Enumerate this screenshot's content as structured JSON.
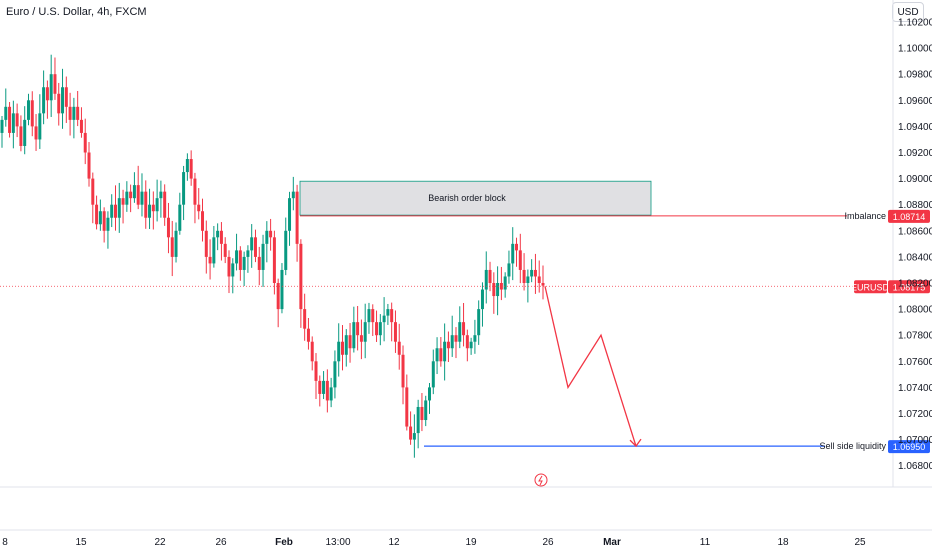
{
  "header": {
    "symbol_title": "Euro / U.S. Dollar, 4h, FXCM",
    "currency_button": "USD"
  },
  "chart_data": {
    "type": "candlestick",
    "symbol": "EURUSD",
    "timeframe": "4h",
    "y_axis": {
      "ticks": [
        "1.10200",
        "1.10000",
        "1.09800",
        "1.09600",
        "1.09400",
        "1.09200",
        "1.09000",
        "1.08800",
        "1.08600",
        "1.08400",
        "1.08200",
        "1.08000",
        "1.07800",
        "1.07600",
        "1.07400",
        "1.07200",
        "1.07000",
        "1.06800"
      ],
      "tick_values": [
        1.102,
        1.1,
        1.098,
        1.096,
        1.094,
        1.092,
        1.09,
        1.088,
        1.086,
        1.084,
        1.082,
        1.08,
        1.078,
        1.076,
        1.074,
        1.072,
        1.07,
        1.068
      ]
    },
    "x_axis": {
      "ticks": [
        "8",
        "15",
        "22",
        "26",
        "Feb",
        "13:00",
        "12",
        "19",
        "26",
        "Mar",
        "11",
        "18",
        "25"
      ]
    },
    "colors": {
      "up": "#089981",
      "down": "#f23645",
      "order_block_fill": "#e0e0e3",
      "order_block_border": "#089981",
      "liquidity": "#2962ff",
      "projection": "#f23645",
      "price_line": "#f23645"
    },
    "closes": [
      1.0945,
      1.0955,
      1.0935,
      1.095,
      1.094,
      1.0925,
      1.0945,
      1.096,
      1.094,
      1.093,
      1.095,
      1.097,
      1.096,
      1.098,
      1.0965,
      1.095,
      1.097,
      1.0955,
      1.0945,
      1.0955,
      1.0945,
      1.0935,
      1.092,
      1.09,
      1.088,
      1.0865,
      1.0875,
      1.086,
      1.087,
      1.088,
      1.087,
      1.0885,
      1.088,
      1.089,
      1.0885,
      1.0895,
      1.088,
      1.089,
      1.087,
      1.088,
      1.0875,
      1.0885,
      1.089,
      1.087,
      1.0855,
      1.084,
      1.086,
      1.088,
      1.0905,
      1.0915,
      1.09,
      1.088,
      1.0875,
      1.086,
      1.084,
      1.0835,
      1.0855,
      1.086,
      1.085,
      1.084,
      1.0825,
      1.0835,
      1.0845,
      1.083,
      1.084,
      1.0845,
      1.0855,
      1.084,
      1.083,
      1.085,
      1.086,
      1.0855,
      1.082,
      1.08,
      1.083,
      1.086,
      1.0885,
      1.089,
      1.085,
      1.08,
      1.0785,
      1.0775,
      1.076,
      1.0745,
      1.0735,
      1.0745,
      1.073,
      1.074,
      1.076,
      1.0775,
      1.0765,
      1.078,
      1.077,
      1.079,
      1.078,
      1.0775,
      1.079,
      1.08,
      1.079,
      1.078,
      1.079,
      1.0795,
      1.08,
      1.079,
      1.0775,
      1.0765,
      1.074,
      1.071,
      1.07,
      1.0705,
      1.0725,
      1.0715,
      1.073,
      1.074,
      1.076,
      1.077,
      1.076,
      1.0775,
      1.077,
      1.078,
      1.0775,
      1.079,
      1.078,
      1.077,
      1.0775,
      1.078,
      1.08,
      1.0815,
      1.083,
      1.082,
      1.081,
      1.082,
      1.0815,
      1.0825,
      1.0835,
      1.085,
      1.0845,
      1.083,
      1.082,
      1.0825,
      1.083,
      1.0825,
      1.082,
      1.0818
    ],
    "annotations": {
      "order_block": {
        "label": "Bearish order block",
        "price_top": 1.0898,
        "price_bottom": 1.0872
      },
      "imbalance": {
        "label": "Imbalance",
        "price": 1.08714,
        "price_label": "1.08714"
      },
      "last_price": {
        "label": "EURUSD",
        "price": 1.08175,
        "price_label": "1.08175"
      },
      "sell_side_liquidity": {
        "label": "Sell side liquidity",
        "price": 1.0695,
        "price_label": "1.06950"
      },
      "projection_prices": [
        1.08175,
        1.074,
        1.078,
        1.0695
      ]
    }
  }
}
